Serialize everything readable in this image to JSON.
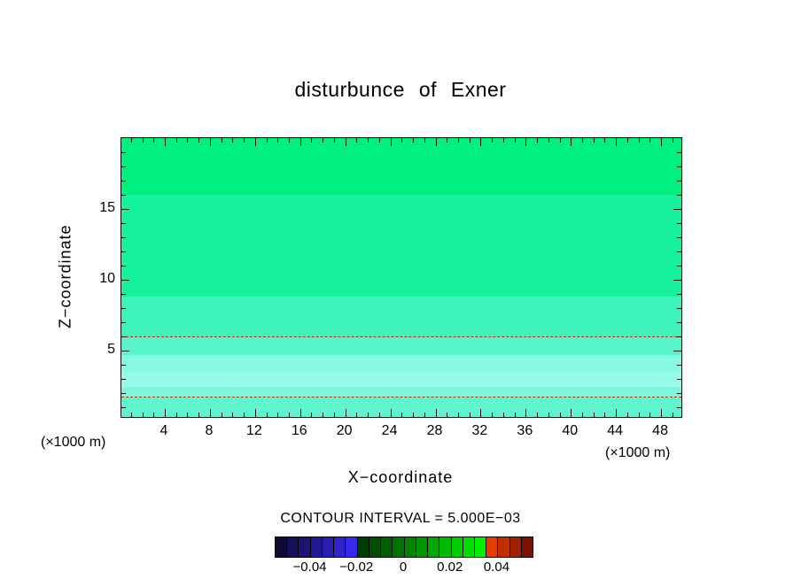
{
  "title": "disturbunce of Exner",
  "axis": {
    "x_title": "X−coordinate",
    "z_title": "Z−coordinate",
    "unit_left": "(×1000 m)",
    "unit_right": "(×1000 m)"
  },
  "contour_note": "CONTOUR INTERVAL = 5.000E−03",
  "chart_data": {
    "type": "heatmap",
    "title": "disturbunce of Exner",
    "xlabel": "X−coordinate",
    "ylabel": "Z−coordinate",
    "x_unit": "×1000 m",
    "z_unit": "×1000 m",
    "xlim": [
      0.15,
      49.8
    ],
    "zlim": [
      0.3,
      20.0
    ],
    "x_major_ticks": [
      4,
      8,
      12,
      16,
      20,
      24,
      28,
      32,
      36,
      40,
      44,
      48
    ],
    "x_major_step": 4,
    "z_major_ticks": [
      5,
      10,
      15
    ],
    "minor_tick_step": 1,
    "contour_interval": 0.005,
    "fill_bands": [
      {
        "z_from": 16.0,
        "z_to": 20.0,
        "color": "#00f07e"
      },
      {
        "z_from": 8.8,
        "z_to": 16.0,
        "color": "#16f19e"
      },
      {
        "z_from": 6.0,
        "z_to": 8.8,
        "color": "#3ff3bd"
      },
      {
        "z_from": 4.7,
        "z_to": 6.0,
        "color": "#58f5cd"
      },
      {
        "z_from": 3.5,
        "z_to": 4.7,
        "color": "#86f9e2"
      },
      {
        "z_from": 2.4,
        "z_to": 3.5,
        "color": "#97fbea"
      },
      {
        "z_from": 1.7,
        "z_to": 2.4,
        "color": "#7cf7dc"
      },
      {
        "z_from": 0.3,
        "z_to": 1.7,
        "color": "#5ff5d0"
      }
    ],
    "dashed_contours": [
      {
        "z": 6.0,
        "color": "#b03000"
      },
      {
        "z": 1.75,
        "color": "#b03000"
      }
    ],
    "colorbar": {
      "min": -0.055,
      "max": 0.055,
      "cell_colors": [
        "#0d0a38",
        "#140f56",
        "#1b1474",
        "#221992",
        "#291eb0",
        "#3023ce",
        "#3728ec",
        "#003c00",
        "#004e00",
        "#006000",
        "#007200",
        "#008400",
        "#009600",
        "#00a800",
        "#00ba00",
        "#00cc00",
        "#00de00",
        "#00f000",
        "#e63c00",
        "#c22e00",
        "#9e2000",
        "#7a1200"
      ],
      "labels": [
        {
          "value": -0.04,
          "text": "−0.04"
        },
        {
          "value": -0.02,
          "text": "−0.02"
        },
        {
          "value": 0,
          "text": "0"
        },
        {
          "value": 0.02,
          "text": "0.02"
        },
        {
          "value": 0.04,
          "text": "0.04"
        }
      ]
    }
  }
}
